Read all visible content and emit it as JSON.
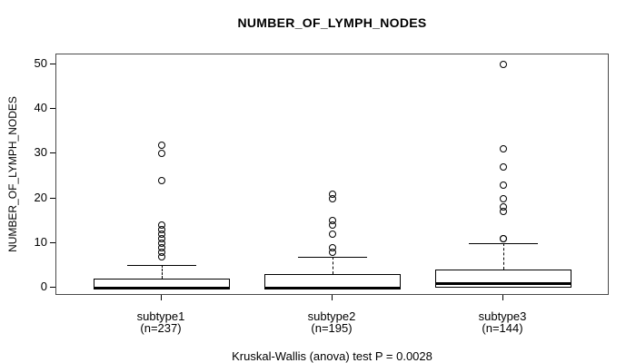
{
  "title": "NUMBER_OF_LYMPH_NODES",
  "y_axis": {
    "label": "NUMBER_OF_LYMPH_NODES",
    "ticks": [
      "0",
      "10",
      "20",
      "30",
      "40",
      "50"
    ]
  },
  "footer": "Kruskal-Wallis (anova) test P = 0.0028",
  "chart_data": {
    "type": "boxplot",
    "title": "NUMBER_OF_LYMPH_NODES",
    "ylabel": "NUMBER_OF_LYMPH_NODES",
    "xlabel": "",
    "ylim": [
      0,
      50
    ],
    "y_ticks": [
      0,
      10,
      20,
      30,
      40,
      50
    ],
    "grid": false,
    "annotation": "Kruskal-Wallis (anova) test P = 0.0028",
    "groups": [
      {
        "label": "subtype1",
        "n_label": "(n=237)",
        "n": 237,
        "min": 0,
        "q1": 0,
        "median": 0,
        "q3": 2,
        "whisker_low": 0,
        "whisker_high": 5,
        "outliers": [
          7,
          8,
          9,
          10,
          11,
          12,
          13,
          14,
          24,
          30,
          32
        ]
      },
      {
        "label": "subtype2",
        "n_label": "(n=195)",
        "n": 195,
        "min": 0,
        "q1": 0,
        "median": 0,
        "q3": 3,
        "whisker_low": 0,
        "whisker_high": 7,
        "outliers": [
          8,
          9,
          12,
          14,
          15,
          20,
          21
        ]
      },
      {
        "label": "subtype3",
        "n_label": "(n=144)",
        "n": 144,
        "min": 0,
        "q1": 0,
        "median": 1,
        "q3": 4,
        "whisker_low": 0,
        "whisker_high": 10,
        "outliers": [
          11,
          11,
          17,
          18,
          20,
          23,
          27,
          31,
          50
        ]
      }
    ]
  }
}
